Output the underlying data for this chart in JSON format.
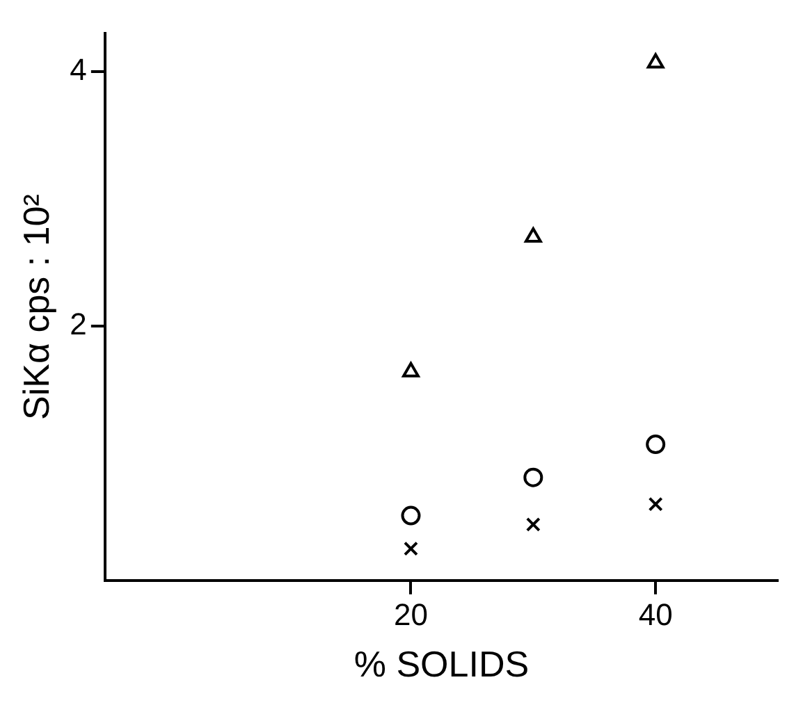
{
  "chart_data": {
    "type": "scatter",
    "xlabel": "% SOLIDS",
    "ylabel": "SiKα cps : 10²",
    "xlim": [
      -5,
      50
    ],
    "ylim": [
      0,
      4.3
    ],
    "xticks": [
      20,
      40
    ],
    "yticks": [
      2,
      4
    ],
    "grid": false,
    "legend": false,
    "series": [
      {
        "color": "#000000",
        "marker": "triangle",
        "x": [
          20,
          30,
          40
        ],
        "values": [
          1.64,
          2.7,
          4.07
        ]
      },
      {
        "color": "#000000",
        "marker": "circle",
        "x": [
          20,
          30,
          40
        ],
        "values": [
          0.51,
          0.81,
          1.07
        ]
      },
      {
        "color": "#000000",
        "marker": "cross",
        "x": [
          20,
          30,
          40
        ],
        "values": [
          0.25,
          0.44,
          0.6
        ]
      }
    ]
  }
}
